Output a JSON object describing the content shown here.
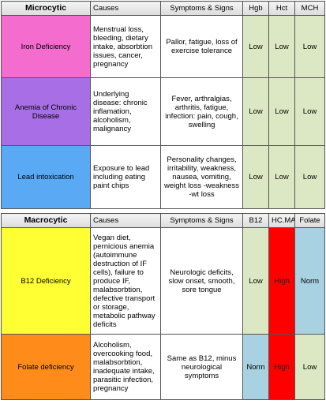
{
  "sections": [
    {
      "header": [
        "Microcytic",
        "Causes",
        "Symptoms & Signs",
        "Hgb",
        "Hct",
        "MCH"
      ],
      "rows": [
        {
          "name": "Iron Deficiency",
          "causes": "Menstrual loss, bleeding, dietary intake, absorbtion issues, cancer, pregnancy",
          "symptoms": "Pallor, fatigue, loss of exercise tolerance",
          "labs": [
            "Low",
            "Low",
            "Low"
          ]
        },
        {
          "name": "Anemia of Chronic Disease",
          "causes": "Underlying disease: chronic inflamation, alcoholism, malignancy",
          "symptoms": "Fever, arthralgias, arthritis, fatigue, infection: pain, cough, swelling",
          "labs": [
            "Low",
            "Low",
            "Low"
          ]
        },
        {
          "name": "Lead intoxication",
          "causes": "Exposure to lead including eating paint chips",
          "symptoms": "Personality changes, irritability, weakness, nausea, vomiting, weight loss -weakness -wt loss",
          "labs": [
            "Low",
            "Low",
            "Low"
          ]
        }
      ]
    },
    {
      "header": [
        "Macrocytic",
        "Causes",
        "Symptoms & Signs",
        "B12",
        "HC.MA",
        "Folate"
      ],
      "rows": [
        {
          "name": "B12 Deficiency",
          "causes": "Vegan diet, pernicious anemia (autoimmune destruction of IF cells), failure to produce IF, malabsorbtion, defective transport or storage, metabolic pathway deficits",
          "symptoms": "Neurologic deficits, slow onset, smooth, sore tongue",
          "labs": [
            "Low",
            "High",
            "Norm"
          ]
        },
        {
          "name": "Folate deficiency",
          "causes": "Alcoholism, overcooking food, malabsorbtion, inadequate intake, parasitic infection, pregnancy",
          "symptoms": "Same as B12, minus neurological symptoms",
          "labs": [
            "Norm",
            "High",
            "Low"
          ]
        }
      ]
    }
  ]
}
